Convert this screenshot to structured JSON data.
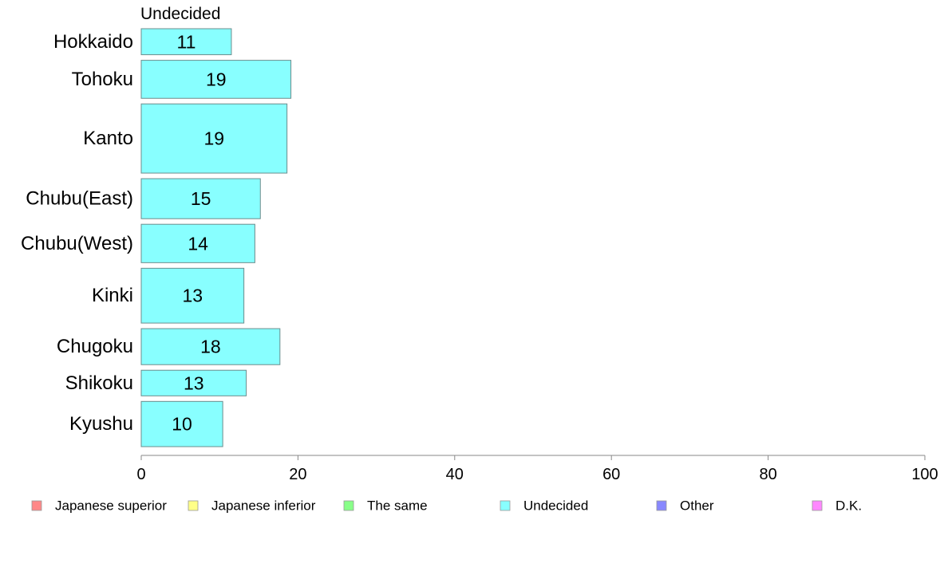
{
  "chart_data": {
    "type": "bar",
    "orientation": "horizontal",
    "panel_title": "Undecided",
    "categories": [
      "Hokkaido",
      "Tohoku",
      "Kanto",
      "Chubu(East)",
      "Chubu(West)",
      "Kinki",
      "Chugoku",
      "Shikoku",
      "Kyushu"
    ],
    "series": [
      {
        "name": "Undecided",
        "color": "#88ffff",
        "values": [
          11.5,
          19.1,
          18.6,
          15.2,
          14.5,
          13.1,
          17.7,
          13.4,
          10.4
        ],
        "labels": [
          "11",
          "19",
          "19",
          "15",
          "14",
          "13",
          "18",
          "13",
          "10"
        ]
      }
    ],
    "bar_widths_relative": [
      0.65,
      0.95,
      1.73,
      1.0,
      0.96,
      1.37,
      0.9,
      0.64,
      1.13
    ],
    "xlim": [
      0,
      100
    ],
    "xticks": [
      "0",
      "20",
      "40",
      "60",
      "80",
      "100"
    ],
    "xlabel": "",
    "ylabel": "",
    "grid": false,
    "legend": {
      "placement": "bottom",
      "entries": [
        {
          "label": "Japanese superior",
          "color": "#ff8888"
        },
        {
          "label": "Japanese inferior",
          "color": "#ffff88"
        },
        {
          "label": "The same",
          "color": "#88ff88"
        },
        {
          "label": "Undecided",
          "color": "#88ffff"
        },
        {
          "label": "Other",
          "color": "#8888ff"
        },
        {
          "label": "D.K.",
          "color": "#ff88ff"
        }
      ]
    }
  }
}
